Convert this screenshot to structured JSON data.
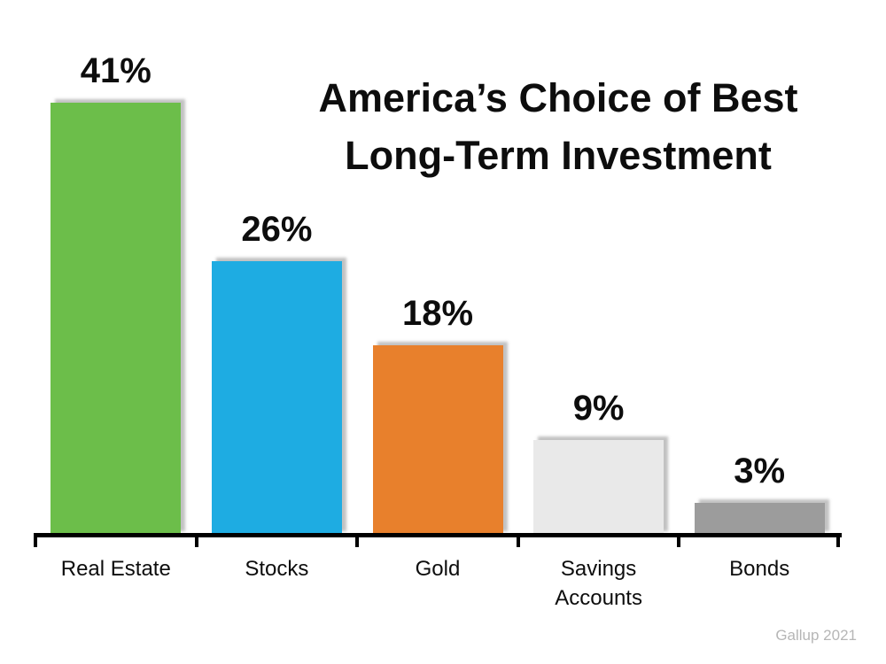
{
  "title": {
    "line1": "America’s Choice of Best",
    "line2": "Long-Term Investment"
  },
  "attribution": "Gallup 2021",
  "chart_data": {
    "type": "bar",
    "title": "America’s Choice of Best Long-Term Investment",
    "categories": [
      "Real Estate",
      "Stocks",
      "Gold",
      "Savings Accounts",
      "Bonds"
    ],
    "values": [
      41,
      26,
      18,
      9,
      3
    ],
    "value_labels": [
      "41%",
      "26%",
      "18%",
      "9%",
      "3%"
    ],
    "colors": [
      "#6CBE4A",
      "#1EACE2",
      "#E8802C",
      "#E9E9E9",
      "#9C9C9C"
    ],
    "xlabel": "",
    "ylabel": "",
    "ylim": [
      0,
      45
    ],
    "grid": false,
    "legend": "none",
    "data_labels": "above-bars",
    "source": "Gallup 2021"
  }
}
